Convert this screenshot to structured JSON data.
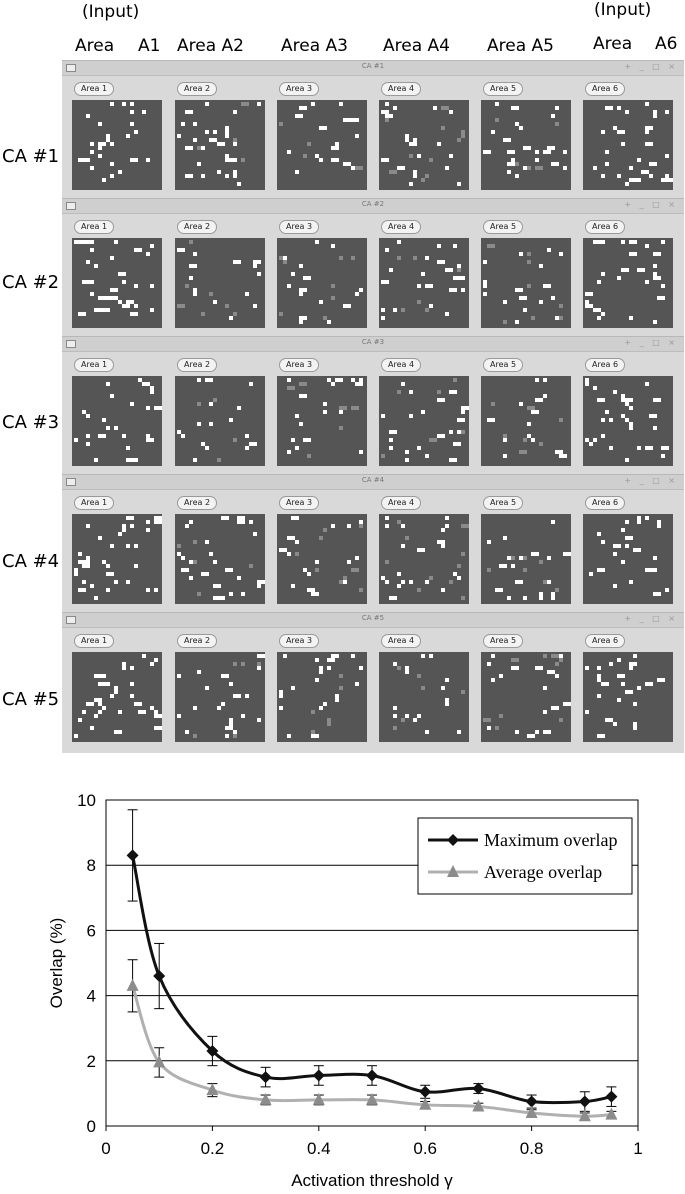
{
  "header": {
    "input_left": "(Input)",
    "input_right": "(Input)",
    "columns": [
      "Area",
      "A1",
      "Area A2",
      "Area A3",
      "Area A4",
      "Area A5",
      "Area",
      "A6"
    ]
  },
  "row_labels": [
    "CA #1",
    "CA #2",
    "CA #3",
    "CA #4",
    "CA #5"
  ],
  "windows": [
    {
      "title": "CA #1",
      "controls": "+ _ □ ×"
    },
    {
      "title": "CA #2",
      "controls": "+ _ □ ×"
    },
    {
      "title": "CA #3",
      "controls": "+ _ □ ×"
    },
    {
      "title": "CA #4",
      "controls": "+ _ □ ×"
    },
    {
      "title": "CA #5",
      "controls": "+ _ □ ×"
    }
  ],
  "area_tabs": [
    "Area 1",
    "Area 2",
    "Area 3",
    "Area 4",
    "Area 5",
    "Area 6"
  ],
  "colors": {
    "grid_bg": "#555555",
    "active_neuron": "#ffffff",
    "partial_neuron": "#8a8a8a",
    "max_series": "#111111",
    "avg_series": "#b0b0b0"
  },
  "chart_data": {
    "type": "line",
    "xlabel": "Activation threshold  γ",
    "ylabel": "Overlap (%)",
    "xlim": [
      0,
      1
    ],
    "ylim": [
      0,
      10
    ],
    "xticks": [
      "0",
      "0.2",
      "0.4",
      "0.6",
      "0.8",
      "1"
    ],
    "yticks": [
      "0",
      "2",
      "4",
      "6",
      "8",
      "10"
    ],
    "grid": "horizontal",
    "legend_position": "top-right",
    "x": [
      0.05,
      0.1,
      0.2,
      0.3,
      0.4,
      0.5,
      0.6,
      0.7,
      0.8,
      0.9,
      0.95
    ],
    "series": [
      {
        "name": "Maximum overlap",
        "marker": "diamond",
        "values": [
          8.3,
          4.6,
          2.3,
          1.5,
          1.55,
          1.55,
          1.05,
          1.15,
          0.75,
          0.75,
          0.9
        ],
        "errors": [
          1.4,
          1.0,
          0.45,
          0.3,
          0.3,
          0.3,
          0.2,
          0.15,
          0.2,
          0.3,
          0.3
        ]
      },
      {
        "name": "Average overlap",
        "marker": "triangle",
        "values": [
          4.3,
          1.95,
          1.1,
          0.8,
          0.8,
          0.8,
          0.65,
          0.6,
          0.4,
          0.3,
          0.35
        ],
        "errors": [
          0.8,
          0.45,
          0.2,
          0.15,
          0.15,
          0.15,
          0.1,
          0.1,
          0.1,
          0.1,
          0.1
        ]
      }
    ]
  }
}
